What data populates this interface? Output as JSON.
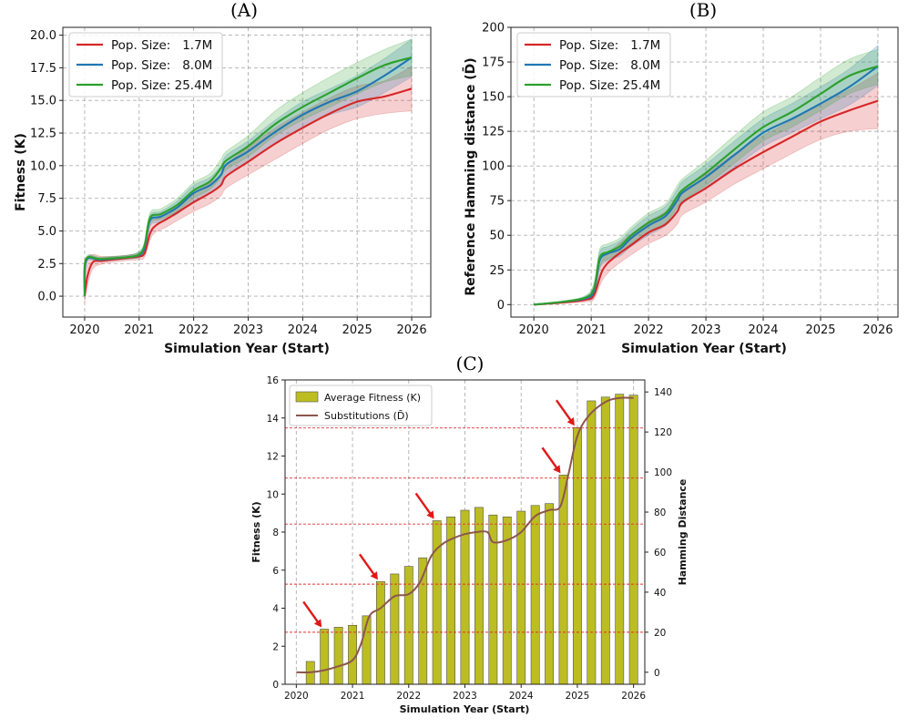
{
  "chart_data": [
    {
      "panel": "(A)",
      "type": "line",
      "title": "",
      "xlabel": "Simulation Year (Start)",
      "ylabel": "Fitness (K)",
      "xlim": [
        2019.6,
        2026.35
      ],
      "ylim": [
        -1.6,
        20.6
      ],
      "xticks": [
        2020,
        2021,
        2022,
        2023,
        2024,
        2025,
        2026
      ],
      "yticks": [
        0.0,
        2.5,
        5.0,
        7.5,
        10.0,
        12.5,
        15.0,
        17.5,
        20.0
      ],
      "ytick_labels": [
        "0.0",
        "2.5",
        "5.0",
        "7.5",
        "10.0",
        "12.5",
        "15.0",
        "17.5",
        "20.0"
      ],
      "grid": true,
      "legend_position": "top-left",
      "series": [
        {
          "name": "Pop. Size:   1.7M",
          "color": "#d62728",
          "x": [
            2020.0,
            2020.05,
            2020.15,
            2020.3,
            2020.5,
            2020.8,
            2021.0,
            2021.1,
            2021.2,
            2021.3,
            2021.5,
            2021.7,
            2022.0,
            2022.3,
            2022.5,
            2022.6,
            2023.0,
            2023.5,
            2024.0,
            2024.5,
            2025.0,
            2025.5,
            2026.0
          ],
          "y": [
            0.0,
            1.5,
            2.6,
            2.7,
            2.8,
            2.95,
            3.05,
            3.3,
            4.8,
            5.4,
            5.9,
            6.4,
            7.2,
            7.9,
            8.5,
            9.2,
            10.3,
            11.7,
            12.9,
            14.0,
            14.9,
            15.3,
            15.9
          ],
          "band_lower": [
            -0.5,
            0.8,
            2.1,
            2.45,
            2.6,
            2.75,
            2.8,
            3.0,
            4.3,
            4.9,
            5.3,
            5.8,
            6.5,
            7.1,
            7.7,
            8.3,
            9.3,
            10.5,
            11.7,
            12.8,
            13.6,
            14.0,
            14.2
          ],
          "band_upper": [
            0.5,
            2.8,
            3.2,
            3.05,
            3.05,
            3.15,
            3.3,
            3.7,
            5.4,
            6.0,
            6.5,
            7.0,
            7.9,
            8.7,
            9.3,
            10.1,
            11.4,
            12.9,
            14.1,
            15.2,
            16.1,
            16.5,
            17.6
          ]
        },
        {
          "name": "Pop. Size:   8.0M",
          "color": "#1f77b4",
          "x": [
            2020.0,
            2020.03,
            2020.3,
            2020.8,
            2021.0,
            2021.1,
            2021.2,
            2021.4,
            2021.7,
            2022.0,
            2022.3,
            2022.5,
            2022.6,
            2023.0,
            2023.5,
            2024.0,
            2024.5,
            2025.0,
            2025.5,
            2026.0
          ],
          "y": [
            0.0,
            2.75,
            2.8,
            3.0,
            3.15,
            3.7,
            5.8,
            6.1,
            6.8,
            7.9,
            8.5,
            9.3,
            10.1,
            11.1,
            12.6,
            13.9,
            14.9,
            15.7,
            16.9,
            18.3
          ],
          "band_lower": [
            0.0,
            2.6,
            2.65,
            2.85,
            2.95,
            3.4,
            5.4,
            5.7,
            6.3,
            7.3,
            7.9,
            8.6,
            9.4,
            10.3,
            11.7,
            12.9,
            13.9,
            14.5,
            15.6,
            16.8
          ],
          "band_upper": [
            0.0,
            2.9,
            2.95,
            3.15,
            3.4,
            4.0,
            6.2,
            6.5,
            7.3,
            8.5,
            9.1,
            10.0,
            10.8,
            11.9,
            13.5,
            14.9,
            15.9,
            16.9,
            18.2,
            19.7
          ]
        },
        {
          "name": "Pop. Size: 25.4M",
          "color": "#2ca02c",
          "x": [
            2020.0,
            2020.02,
            2020.3,
            2020.8,
            2021.0,
            2021.1,
            2021.2,
            2021.4,
            2021.7,
            2022.0,
            2022.3,
            2022.5,
            2022.6,
            2023.0,
            2023.5,
            2024.0,
            2024.5,
            2025.0,
            2025.5,
            2026.0
          ],
          "y": [
            0.0,
            2.8,
            2.85,
            3.0,
            3.2,
            3.9,
            6.0,
            6.3,
            7.0,
            8.1,
            8.8,
            9.8,
            10.4,
            11.5,
            13.2,
            14.5,
            15.6,
            16.7,
            17.7,
            18.3
          ],
          "band_lower": [
            0.0,
            2.65,
            2.7,
            2.85,
            3.0,
            3.6,
            5.6,
            5.9,
            6.5,
            7.5,
            8.2,
            9.1,
            9.7,
            10.7,
            12.3,
            13.5,
            14.5,
            15.5,
            16.4,
            16.9
          ],
          "band_upper": [
            0.0,
            2.95,
            3.0,
            3.15,
            3.45,
            4.2,
            6.4,
            6.7,
            7.5,
            8.7,
            9.4,
            10.5,
            11.1,
            12.3,
            14.2,
            15.6,
            16.8,
            17.9,
            18.9,
            19.7
          ]
        }
      ]
    },
    {
      "panel": "(B)",
      "type": "line",
      "title": "",
      "xlabel": "Simulation Year (Start)",
      "ylabel": "Reference Hamming distance (D̄)",
      "xlim": [
        2019.6,
        2026.35
      ],
      "ylim": [
        -9,
        200
      ],
      "xticks": [
        2020,
        2021,
        2022,
        2023,
        2024,
        2025,
        2026
      ],
      "yticks": [
        0,
        25,
        50,
        75,
        100,
        125,
        150,
        175,
        200
      ],
      "ytick_labels": [
        "0",
        "25",
        "50",
        "75",
        "100",
        "125",
        "150",
        "175",
        "200"
      ],
      "grid": true,
      "legend_position": "top-left",
      "series": [
        {
          "name": "Pop. Size:   1.7M",
          "color": "#d62728",
          "x": [
            2020.0,
            2020.5,
            2020.9,
            2021.05,
            2021.2,
            2021.4,
            2021.7,
            2022.0,
            2022.3,
            2022.5,
            2022.6,
            2023.0,
            2023.5,
            2024.0,
            2024.5,
            2025.0,
            2025.5,
            2026.0
          ],
          "y": [
            0,
            1.5,
            3.5,
            7,
            25,
            34,
            43,
            52,
            58,
            67,
            74,
            84,
            98,
            110,
            121,
            132,
            140,
            147
          ],
          "band_lower": [
            0,
            1,
            2,
            4,
            18,
            27,
            36,
            44,
            50,
            58,
            65,
            74,
            87,
            98,
            109,
            119,
            125,
            127
          ],
          "band_upper": [
            0,
            2,
            5,
            11,
            33,
            41,
            51,
            60,
            67,
            76,
            83,
            94,
            109,
            122,
            133,
            145,
            155,
            167
          ]
        },
        {
          "name": "Pop. Size:   8.0M",
          "color": "#1f77b4",
          "x": [
            2020.0,
            2020.5,
            2020.9,
            2021.05,
            2021.15,
            2021.3,
            2021.5,
            2021.7,
            2022.0,
            2022.3,
            2022.5,
            2022.6,
            2023.0,
            2023.5,
            2024.0,
            2024.5,
            2025.0,
            2025.5,
            2026.0
          ],
          "y": [
            0,
            2,
            4.5,
            10,
            32,
            37,
            40,
            48,
            57,
            64,
            75,
            81,
            92,
            108,
            124,
            134,
            145,
            157,
            172
          ],
          "band_lower": [
            0,
            1.5,
            3,
            6,
            26,
            32,
            35,
            42,
            50,
            57,
            67,
            73,
            84,
            99,
            114,
            124,
            134,
            144,
            158
          ],
          "band_upper": [
            0,
            2.5,
            6,
            14,
            38,
            42,
            46,
            54,
            64,
            71,
            83,
            89,
            101,
            118,
            134,
            145,
            157,
            170,
            187
          ]
        },
        {
          "name": "Pop. Size: 25.4M",
          "color": "#2ca02c",
          "x": [
            2020.0,
            2020.5,
            2020.9,
            2021.05,
            2021.15,
            2021.3,
            2021.5,
            2021.7,
            2022.0,
            2022.3,
            2022.5,
            2022.6,
            2023.0,
            2023.5,
            2024.0,
            2024.5,
            2025.0,
            2025.5,
            2026.0
          ],
          "y": [
            0,
            2,
            5,
            12,
            34,
            38,
            42,
            50,
            59,
            66,
            78,
            83,
            95,
            112,
            128,
            139,
            152,
            165,
            172
          ],
          "band_lower": [
            0,
            1.5,
            3.5,
            8,
            28,
            33,
            37,
            44,
            52,
            59,
            70,
            75,
            86,
            102,
            118,
            128,
            140,
            152,
            159
          ],
          "band_upper": [
            0,
            2.5,
            6.5,
            16,
            40,
            44,
            48,
            56,
            66,
            73,
            86,
            91,
            104,
            122,
            139,
            150,
            164,
            177,
            184
          ]
        }
      ]
    },
    {
      "panel": "(C)",
      "type": "bar",
      "title": "",
      "xlabel": "Simulation Year (Start)",
      "ylabel": "Fitness (K)",
      "ylabel_right": "Hamming Distance",
      "xlim": [
        2019.8,
        2026.2
      ],
      "ylim": [
        0,
        16
      ],
      "ylim_right": [
        -6,
        146
      ],
      "xticks": [
        2020,
        2021,
        2022,
        2023,
        2024,
        2025,
        2026
      ],
      "yticks": [
        0,
        2,
        4,
        6,
        8,
        10,
        12,
        14,
        16
      ],
      "yticks_right": [
        0,
        20,
        40,
        60,
        80,
        100,
        120,
        140
      ],
      "grid": true,
      "legend_position": "top-left",
      "bar_series": {
        "name": "Average Fitness (K)",
        "color": "#bcbd22",
        "x": [
          2020.25,
          2020.5,
          2020.75,
          2021.0,
          2021.25,
          2021.5,
          2021.75,
          2022.0,
          2022.25,
          2022.5,
          2022.75,
          2023.0,
          2023.25,
          2023.5,
          2023.75,
          2024.0,
          2024.25,
          2024.5,
          2024.75,
          2025.0,
          2025.25,
          2025.5,
          2025.75,
          2026.0
        ],
        "values": [
          1.2,
          2.9,
          3.0,
          3.1,
          3.6,
          5.4,
          5.8,
          6.2,
          6.65,
          8.6,
          8.8,
          9.15,
          9.3,
          8.9,
          8.8,
          9.1,
          9.4,
          9.5,
          11.0,
          13.5,
          14.9,
          15.1,
          15.25,
          15.2
        ]
      },
      "line_series": {
        "name": "Substitutions (D̄)",
        "color": "#8c564b",
        "axis": "right",
        "x": [
          2020.0,
          2020.25,
          2020.5,
          2020.75,
          2021.0,
          2021.15,
          2021.3,
          2021.5,
          2021.75,
          2022.0,
          2022.2,
          2022.4,
          2022.6,
          2022.8,
          2023.0,
          2023.2,
          2023.4,
          2023.5,
          2023.75,
          2024.0,
          2024.25,
          2024.5,
          2024.7,
          2024.85,
          2025.0,
          2025.2,
          2025.5,
          2025.75,
          2026.0
        ],
        "y": [
          0,
          0,
          1,
          3,
          6,
          14,
          28,
          32,
          38,
          39,
          45,
          58,
          64,
          67,
          69,
          70,
          70,
          65,
          66,
          70,
          78,
          81,
          83,
          100,
          118,
          128,
          135,
          137,
          137
        ]
      },
      "reference_lines_right": [
        20,
        44,
        74,
        97,
        122
      ],
      "arrow_targets": [
        {
          "x": 2020.5,
          "y": 2.9
        },
        {
          "x": 2021.5,
          "y": 5.4
        },
        {
          "x": 2022.5,
          "y": 8.6
        },
        {
          "x": 2024.75,
          "y": 11.0
        },
        {
          "x": 2025.0,
          "y": 13.5
        }
      ],
      "reference_line_color": "#e03030",
      "arrow_color": "#e01818"
    }
  ]
}
